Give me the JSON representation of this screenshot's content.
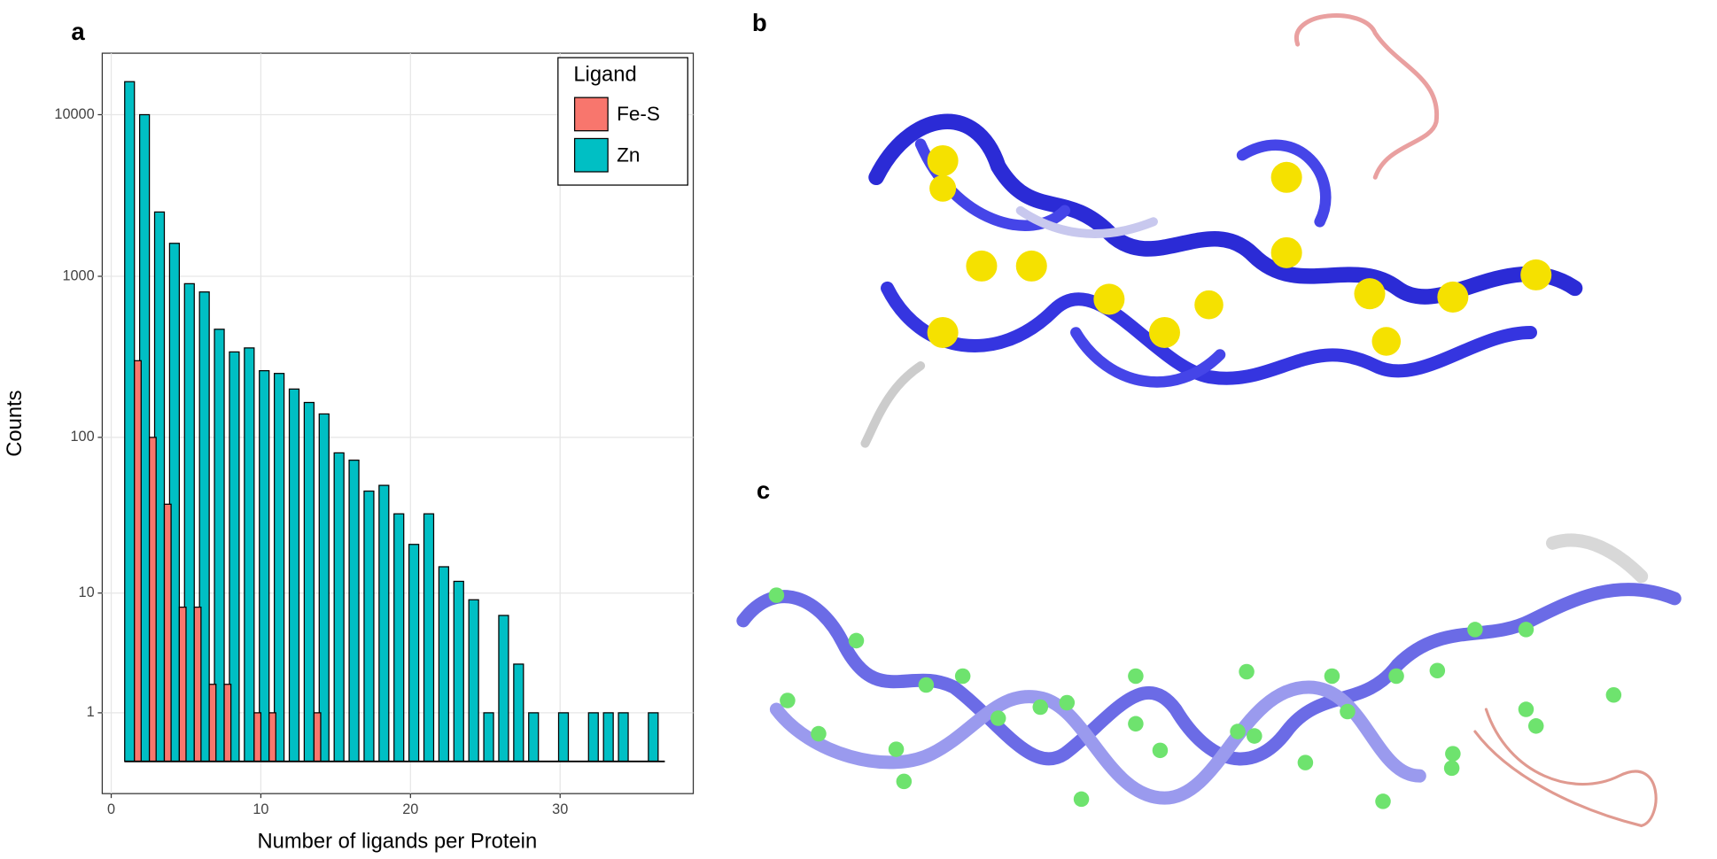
{
  "panel_labels": [
    "a",
    "b",
    "c"
  ],
  "chart_data": {
    "type": "bar",
    "x_label": "Number of ligands per Protein",
    "y_label": "Counts",
    "x": [
      1,
      2,
      3,
      4,
      5,
      6,
      7,
      8,
      9,
      10,
      11,
      12,
      13,
      14,
      15,
      16,
      17,
      18,
      19,
      20,
      21,
      22,
      23,
      24,
      25,
      26,
      27,
      28,
      29,
      30,
      31,
      32,
      33,
      34,
      35,
      36
    ],
    "series": [
      {
        "name": "Fe-S",
        "color": "#f8766d",
        "values": [
          300,
          100,
          38,
          8,
          8,
          2,
          2,
          null,
          1,
          1,
          null,
          null,
          1,
          null,
          null,
          null,
          null,
          null,
          null,
          null,
          null,
          null,
          null,
          null,
          null,
          null,
          null,
          null,
          null,
          null,
          null,
          null,
          null,
          null,
          null,
          null
        ]
      },
      {
        "name": "Zn",
        "color": "#00bfc4",
        "values": [
          16000,
          10000,
          2500,
          1600,
          900,
          800,
          470,
          340,
          360,
          260,
          250,
          200,
          165,
          140,
          80,
          72,
          46,
          50,
          33,
          21,
          33,
          15,
          12,
          9,
          1,
          7,
          3,
          1,
          null,
          1,
          null,
          1,
          1,
          1,
          null,
          1
        ]
      }
    ],
    "legend_title": "Ligand",
    "legend": "top-right",
    "grid": true,
    "yscale": "log1p",
    "xlim": [
      -0.6,
      38.9
    ],
    "xticks": [
      0,
      10,
      20,
      30
    ],
    "ylim": [
      0,
      24000
    ],
    "yticks": [
      1,
      10,
      100,
      1000,
      10000
    ]
  }
}
